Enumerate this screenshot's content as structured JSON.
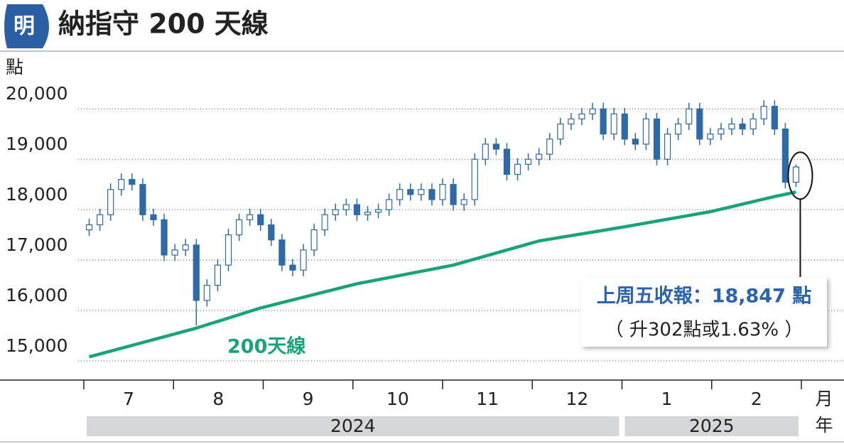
{
  "logo": "明",
  "chart_data": {
    "type": "candlestick",
    "title": "納指守 200 天線",
    "y_unit": "點",
    "x_unit": "月",
    "year_unit": "年",
    "categories": [
      "7",
      "8",
      "9",
      "10",
      "11",
      "12",
      "1",
      "2"
    ],
    "years": [
      "2024",
      "2025"
    ],
    "ylim": [
      14620,
      20750
    ],
    "yticks": [
      {
        "value": 15000,
        "label": "15,000"
      },
      {
        "value": 16000,
        "label": "16,000"
      },
      {
        "value": 17000,
        "label": "17,000"
      },
      {
        "value": 18000,
        "label": "18,000"
      },
      {
        "value": 19000,
        "label": "19,000"
      },
      {
        "value": 20000,
        "label": "20,000"
      }
    ],
    "grid": true,
    "candles": {
      "color": "#2f6aa8",
      "open": [
        17600,
        17700,
        17900,
        18400,
        18600,
        18500,
        17900,
        17800,
        17100,
        17200,
        17300,
        16200,
        16500,
        16900,
        17500,
        17800,
        17900,
        17700,
        17400,
        16900,
        16800,
        17200,
        17600,
        17900,
        18000,
        18100,
        17900,
        17950,
        18000,
        18200,
        18400,
        18300,
        18400,
        18200,
        18500,
        18100,
        18200,
        19000,
        19300,
        19200,
        18700,
        18900,
        19000,
        19100,
        19400,
        19700,
        19800,
        19900,
        20000,
        19500,
        19900,
        19400,
        19300,
        19800,
        19000,
        19500,
        19700,
        20000,
        19400,
        19500,
        19600,
        19700,
        19600,
        19800,
        20050,
        19600,
        18545
      ],
      "high": [
        17820,
        18020,
        18520,
        18720,
        18720,
        18620,
        18020,
        17920,
        17320,
        17420,
        17420,
        16620,
        17020,
        17620,
        17920,
        18020,
        18020,
        17820,
        17520,
        17020,
        17320,
        17720,
        18020,
        18120,
        18220,
        18220,
        18070,
        18120,
        18320,
        18520,
        18520,
        18520,
        18520,
        18620,
        18620,
        18320,
        19120,
        19420,
        19420,
        19320,
        19020,
        19120,
        19220,
        19520,
        19820,
        19920,
        20020,
        20120,
        20120,
        20020,
        20020,
        19520,
        19920,
        19920,
        19620,
        19820,
        20120,
        20120,
        19620,
        19720,
        19820,
        19820,
        19920,
        20170,
        20170,
        19720,
        18900
      ],
      "low": [
        17480,
        17580,
        17780,
        18280,
        18380,
        17780,
        17680,
        16980,
        16980,
        17080,
        15700,
        16080,
        16380,
        16780,
        17380,
        17680,
        17580,
        17280,
        16780,
        16680,
        16680,
        17080,
        17480,
        17780,
        17880,
        17780,
        17780,
        17830,
        17880,
        18080,
        18180,
        18180,
        18080,
        18080,
        17980,
        17980,
        18080,
        18880,
        19080,
        18580,
        18580,
        18780,
        18880,
        18980,
        19280,
        19580,
        19680,
        19780,
        19380,
        19380,
        19280,
        19180,
        19180,
        18880,
        18880,
        19380,
        19580,
        19280,
        19280,
        19380,
        19480,
        19480,
        19480,
        19680,
        19480,
        18425,
        18450
      ],
      "close": [
        17700,
        17900,
        18400,
        18600,
        18500,
        17900,
        17800,
        17100,
        17200,
        17300,
        16200,
        16500,
        16900,
        17500,
        17800,
        17900,
        17700,
        17400,
        16900,
        16800,
        17200,
        17600,
        17900,
        18000,
        18100,
        17900,
        17950,
        18000,
        18200,
        18400,
        18300,
        18400,
        18200,
        18500,
        18100,
        18200,
        19000,
        19300,
        19200,
        18700,
        18900,
        19000,
        19100,
        19400,
        19700,
        19800,
        19900,
        20000,
        19500,
        19900,
        19400,
        19300,
        19800,
        19000,
        19500,
        19700,
        20000,
        19400,
        19500,
        19600,
        19700,
        19600,
        19800,
        20050,
        19600,
        18545,
        18847
      ]
    },
    "lines": [
      {
        "name": "200天線",
        "color": "#17a47b",
        "values": [
          15080,
          15137,
          15194,
          15251,
          15308,
          15365,
          15422,
          15479,
          15536,
          15593,
          15650,
          15717,
          15783,
          15850,
          15917,
          15983,
          16050,
          16103,
          16157,
          16210,
          16263,
          16317,
          16370,
          16423,
          16477,
          16530,
          16571,
          16612,
          16653,
          16694,
          16736,
          16777,
          16818,
          16859,
          16900,
          16960,
          17020,
          17080,
          17140,
          17200,
          17260,
          17320,
          17380,
          17415,
          17450,
          17485,
          17520,
          17555,
          17590,
          17625,
          17660,
          17698,
          17735,
          17773,
          17810,
          17848,
          17885,
          17923,
          17960,
          18010,
          18060,
          18110,
          18160,
          18210,
          18260,
          18305,
          18350
        ]
      }
    ],
    "annotation": {
      "lines": [
        "上周五收報：18,847 點",
        "（ 升302點或1.63% ）"
      ]
    }
  }
}
